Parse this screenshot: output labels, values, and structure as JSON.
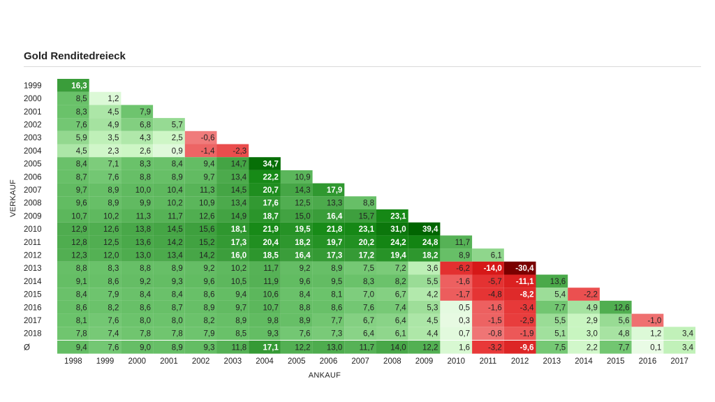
{
  "chart_data": {
    "type": "heatmap",
    "title": "Gold Renditedreieck",
    "xlabel": "ANKAUF",
    "ylabel": "VERKAUF",
    "x_categories": [
      "1998",
      "1999",
      "2000",
      "2001",
      "2002",
      "2003",
      "2004",
      "2005",
      "2006",
      "2007",
      "2008",
      "2009",
      "2010",
      "2011",
      "2012",
      "2013",
      "2014",
      "2015",
      "2016",
      "2017"
    ],
    "y_categories": [
      "1999",
      "2000",
      "2001",
      "2002",
      "2003",
      "2004",
      "2005",
      "2006",
      "2007",
      "2008",
      "2009",
      "2010",
      "2011",
      "2012",
      "2013",
      "2014",
      "2015",
      "2016",
      "2017",
      "2018"
    ],
    "values": [
      [
        "16,3"
      ],
      [
        "8,5",
        "1,2"
      ],
      [
        "8,3",
        "4,5",
        "7,9"
      ],
      [
        "7,6",
        "4,9",
        "6,8",
        "5,7"
      ],
      [
        "5,9",
        "3,5",
        "4,3",
        "2,5",
        "-0,6"
      ],
      [
        "4,5",
        "2,3",
        "2,6",
        "0,9",
        "-1,4",
        "-2,3"
      ],
      [
        "8,4",
        "7,1",
        "8,3",
        "8,4",
        "9,4",
        "14,7",
        "34,7"
      ],
      [
        "8,7",
        "7,6",
        "8,8",
        "8,9",
        "9,7",
        "13,4",
        "22,2",
        "10,9"
      ],
      [
        "9,7",
        "8,9",
        "10,0",
        "10,4",
        "11,3",
        "14,5",
        "20,7",
        "14,3",
        "17,9"
      ],
      [
        "9,6",
        "8,9",
        "9,9",
        "10,2",
        "10,9",
        "13,4",
        "17,6",
        "12,5",
        "13,3",
        "8,8"
      ],
      [
        "10,7",
        "10,2",
        "11,3",
        "11,7",
        "12,6",
        "14,9",
        "18,7",
        "15,0",
        "16,4",
        "15,7",
        "23,1"
      ],
      [
        "12,9",
        "12,6",
        "13,8",
        "14,5",
        "15,6",
        "18,1",
        "21,9",
        "19,5",
        "21,8",
        "23,1",
        "31,0",
        "39,4"
      ],
      [
        "12,8",
        "12,5",
        "13,6",
        "14,2",
        "15,2",
        "17,3",
        "20,4",
        "18,2",
        "19,7",
        "20,2",
        "24,2",
        "24,8",
        "11,7"
      ],
      [
        "12,3",
        "12,0",
        "13,0",
        "13,4",
        "14,2",
        "16,0",
        "18,5",
        "16,4",
        "17,3",
        "17,2",
        "19,4",
        "18,2",
        "8,9",
        "6,1"
      ],
      [
        "8,8",
        "8,3",
        "8,8",
        "8,9",
        "9,2",
        "10,2",
        "11,7",
        "9,2",
        "8,9",
        "7,5",
        "7,2",
        "3,6",
        "-6,2",
        "-14,0",
        "-30,4"
      ],
      [
        "9,1",
        "8,6",
        "9,2",
        "9,3",
        "9,6",
        "10,5",
        "11,9",
        "9,6",
        "9,5",
        "8,3",
        "8,2",
        "5,5",
        "-1,6",
        "-5,7",
        "-11,1",
        "13,6"
      ],
      [
        "8,4",
        "7,9",
        "8,4",
        "8,4",
        "8,6",
        "9,4",
        "10,6",
        "8,4",
        "8,1",
        "7,0",
        "6,7",
        "4,2",
        "-1,7",
        "-4,8",
        "-8,2",
        "5,4",
        "-2,2"
      ],
      [
        "8,6",
        "8,2",
        "8,6",
        "8,7",
        "8,9",
        "9,7",
        "10,7",
        "8,8",
        "8,6",
        "7,6",
        "7,4",
        "5,3",
        "0,5",
        "-1,6",
        "-3,4",
        "7,7",
        "4,9",
        "12,6"
      ],
      [
        "8,1",
        "7,6",
        "8,0",
        "8,0",
        "8,2",
        "8,9",
        "9,8",
        "8,9",
        "7,7",
        "6,7",
        "6,4",
        "4,5",
        "0,3",
        "-1,5",
        "-2,9",
        "5,5",
        "2,9",
        "5,6",
        "-1,0"
      ],
      [
        "7,8",
        "7,4",
        "7,8",
        "7,8",
        "7,9",
        "8,5",
        "9,3",
        "7,6",
        "7,3",
        "6,4",
        "6,1",
        "4,4",
        "0,7",
        "-0,8",
        "-1,9",
        "5,1",
        "3,0",
        "4,8",
        "1,2",
        "3,4"
      ]
    ],
    "average_row": {
      "label": "Ø",
      "values": [
        "9,4",
        "7,6",
        "9,0",
        "8,9",
        "9,3",
        "11,8",
        "17,1",
        "12,2",
        "13,0",
        "11,7",
        "14,0",
        "12,2",
        "1,6",
        "-3,2",
        "-9,6",
        "7,5",
        "2,2",
        "7,7",
        "0,1",
        "3,4"
      ]
    },
    "colors": {
      "neg_strong": "#7a0000",
      "neg_mid": "#e83a3a",
      "neg_light": "#f28b8b",
      "pos_light": "#c8f5c0",
      "pos_mid": "#6cc36c",
      "pos_dark": "#178a17",
      "pos_darkest": "#006400"
    }
  }
}
